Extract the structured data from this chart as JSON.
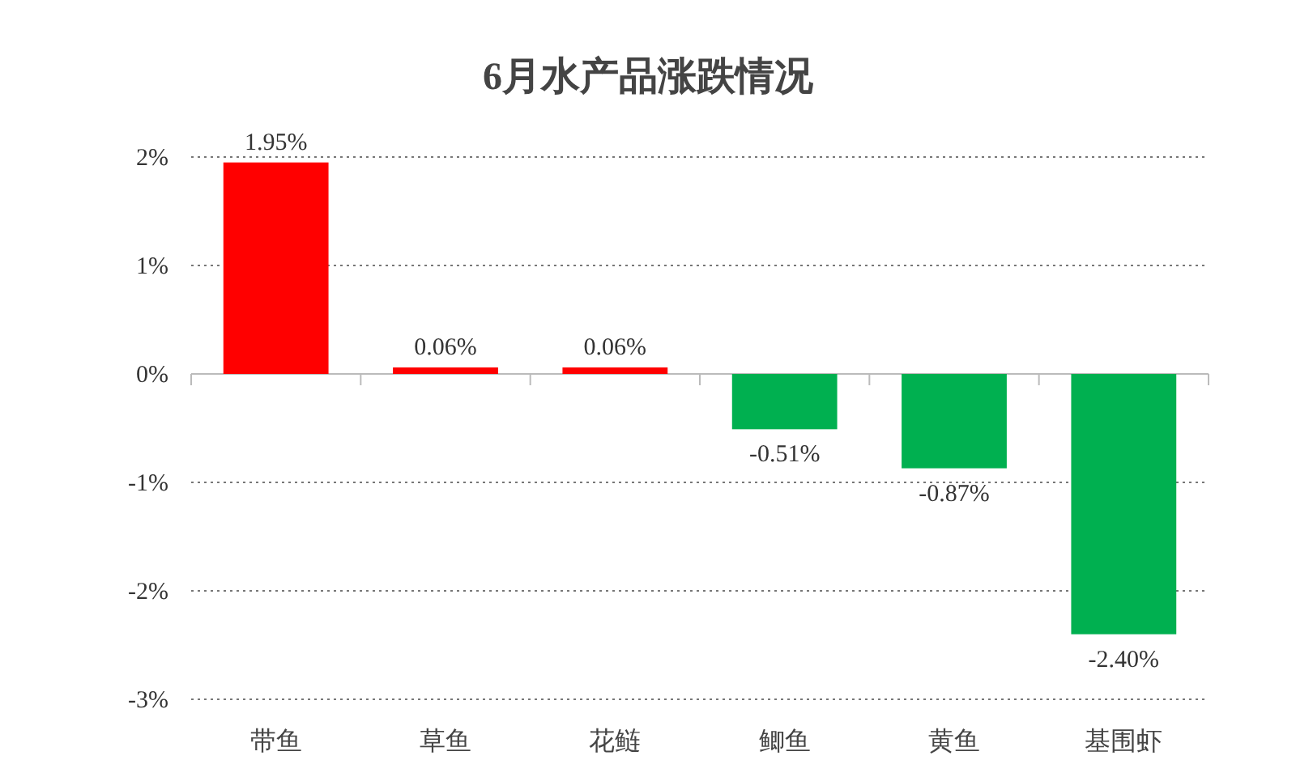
{
  "chart_data": {
    "type": "bar",
    "title": "6月水产品涨跌情况",
    "categories": [
      "带鱼",
      "草鱼",
      "花鲢",
      "鲫鱼",
      "黄鱼",
      "基围虾"
    ],
    "values": [
      1.95,
      0.06,
      0.06,
      -0.51,
      -0.87,
      -2.4
    ],
    "colors": [
      "#ff0000",
      "#ff0000",
      "#ff0000",
      "#00b050",
      "#00b050",
      "#00b050"
    ],
    "value_labels": [
      "1.95%",
      "0.06%",
      "0.06%",
      "-0.51%",
      "-0.87%",
      "-2.40%"
    ],
    "ylim": [
      -3,
      2
    ],
    "yticks": [
      {
        "value": 2,
        "label": "2%"
      },
      {
        "value": 1,
        "label": "1%"
      },
      {
        "value": 0,
        "label": "0%"
      },
      {
        "value": -1,
        "label": "-1%"
      },
      {
        "value": -2,
        "label": "-2%"
      },
      {
        "value": -3,
        "label": "-3%"
      }
    ],
    "grid": "y"
  }
}
